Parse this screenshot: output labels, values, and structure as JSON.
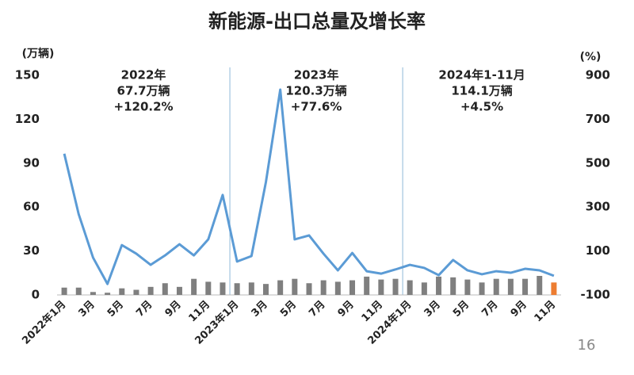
{
  "chart_data": {
    "type": "bar-line",
    "title": "新能源-出口总量及增长率",
    "y_label": "(万辆)",
    "y2_label": "(%)",
    "page_number": "16",
    "categories": [
      "2022年1月",
      null,
      "3月",
      null,
      "5月",
      null,
      "7月",
      null,
      "9月",
      null,
      "11月",
      null,
      "2023年1月",
      null,
      "3月",
      null,
      "5月",
      null,
      "7月",
      null,
      "9月",
      null,
      "11月",
      null,
      "2024年1月",
      null,
      "3月",
      null,
      "5月",
      null,
      "7月",
      null,
      "9月",
      null,
      "11月"
    ],
    "ylim": [
      0,
      150
    ],
    "yticks": [
      0,
      30,
      60,
      90,
      120,
      150
    ],
    "y2lim": [
      -100,
      900
    ],
    "y2ticks": [
      -100,
      100,
      300,
      500,
      700,
      900
    ],
    "annotations": [
      {
        "lines": [
          "2022年",
          "67.7万辆",
          "+120.2%"
        ]
      },
      {
        "lines": [
          "2023年",
          "120.3万辆",
          "+77.6%"
        ]
      },
      {
        "lines": [
          "2024年1-11月",
          "114.1万辆",
          "+4.5%"
        ]
      }
    ],
    "series": [
      {
        "type": "bar",
        "colors": [
          "#7f7f7f",
          "#7f7f7f",
          "#7f7f7f",
          "#7f7f7f",
          "#7f7f7f",
          "#7f7f7f",
          "#7f7f7f",
          "#7f7f7f",
          "#7f7f7f",
          "#7f7f7f",
          "#7f7f7f",
          "#7f7f7f",
          "#7f7f7f",
          "#7f7f7f",
          "#7f7f7f",
          "#7f7f7f",
          "#7f7f7f",
          "#7f7f7f",
          "#7f7f7f",
          "#7f7f7f",
          "#7f7f7f",
          "#7f7f7f",
          "#7f7f7f",
          "#7f7f7f",
          "#7f7f7f",
          "#7f7f7f",
          "#7f7f7f",
          "#7f7f7f",
          "#7f7f7f",
          "#7f7f7f",
          "#7f7f7f",
          "#7f7f7f",
          "#7f7f7f",
          "#7f7f7f",
          "#ed7d31"
        ],
        "values": [
          5,
          5,
          2,
          1.5,
          4.5,
          3.5,
          5.5,
          8,
          5.5,
          11,
          9,
          8.5,
          8,
          8.5,
          7.5,
          10,
          11,
          8,
          10,
          9,
          10,
          12.5,
          10.5,
          11,
          10,
          8.5,
          12.5,
          12,
          10.5,
          8.5,
          11,
          11,
          11,
          13,
          8.5
        ]
      },
      {
        "type": "line",
        "axis": "y2",
        "color": "#5b9bd5",
        "values": [
          543,
          268,
          70,
          -50,
          127,
          88,
          37,
          80,
          131,
          80,
          153,
          355,
          52,
          77,
          413,
          835,
          153,
          171,
          88,
          12,
          91,
          8,
          -3,
          16,
          37,
          23,
          -10,
          59,
          12,
          -6,
          8,
          1,
          19,
          12,
          -13
        ]
      }
    ]
  }
}
